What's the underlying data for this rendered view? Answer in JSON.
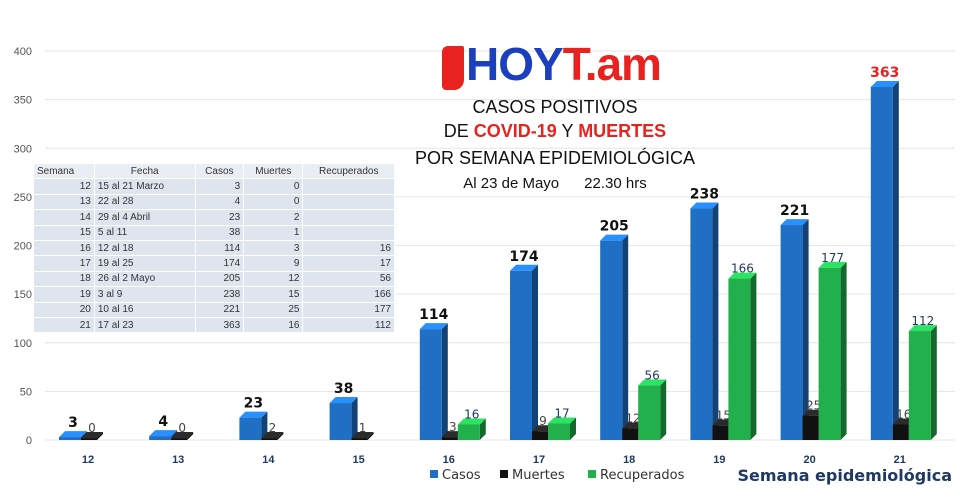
{
  "logo": {
    "text": "HOYT.am",
    "part1": "HOY",
    "part2": "T.am"
  },
  "title": {
    "line1": "CASOS POSITIVOS",
    "line2_a": "DE ",
    "line2_b": "COVID-19",
    "line2_c": " Y ",
    "line2_d": "MUERTES",
    "line3": "POR SEMANA EPIDEMIOLÓGICA",
    "line4_date": "Al 23 de Mayo",
    "line4_time": "22.30 hrs"
  },
  "table": {
    "headers": [
      "Semana",
      "Fecha",
      "Casos",
      "Muertes",
      "Recuperados"
    ],
    "rows": [
      [
        "12",
        "15  al 21 Marzo",
        "3",
        "0",
        ""
      ],
      [
        "13",
        "22 al 28",
        "4",
        "0",
        ""
      ],
      [
        "14",
        "29 al 4 Abril",
        "23",
        "2",
        ""
      ],
      [
        "15",
        "5 al 11",
        "38",
        "1",
        ""
      ],
      [
        "16",
        "12 al 18",
        "114",
        "3",
        "16"
      ],
      [
        "17",
        "19 al 25",
        "174",
        "9",
        "17"
      ],
      [
        "18",
        "26 al 2 Mayo",
        "205",
        "12",
        "56"
      ],
      [
        "19",
        "3 al 9",
        "238",
        "15",
        "166"
      ],
      [
        "20",
        "10 al 16",
        "221",
        "25",
        "177"
      ],
      [
        "21",
        "17 al 23",
        "363",
        "16",
        "112"
      ]
    ]
  },
  "chart_data": {
    "type": "bar",
    "title": "CASOS POSITIVOS DE COVID-19 Y MUERTES POR SEMANA EPIDEMIOLÓGICA",
    "xlabel": "Semana epidemiológica",
    "ylabel": "",
    "ylim": [
      0,
      400
    ],
    "yticks": [
      0,
      50,
      100,
      150,
      200,
      250,
      300,
      350,
      400
    ],
    "grid": true,
    "legend": "bottom",
    "categories": [
      "12",
      "13",
      "14",
      "15",
      "16",
      "17",
      "18",
      "19",
      "20",
      "21"
    ],
    "series": [
      {
        "name": "Casos",
        "color": "#1f6fc4",
        "values": [
          3,
          4,
          23,
          38,
          114,
          174,
          205,
          238,
          221,
          363
        ]
      },
      {
        "name": "Muertes",
        "color": "#111111",
        "values": [
          0,
          0,
          2,
          1,
          3,
          9,
          12,
          15,
          25,
          16
        ]
      },
      {
        "name": "Recuperados",
        "color": "#21b04b",
        "values": [
          null,
          null,
          null,
          null,
          16,
          17,
          56,
          166,
          177,
          112
        ]
      }
    ],
    "highlight_color": "#e8231f"
  }
}
